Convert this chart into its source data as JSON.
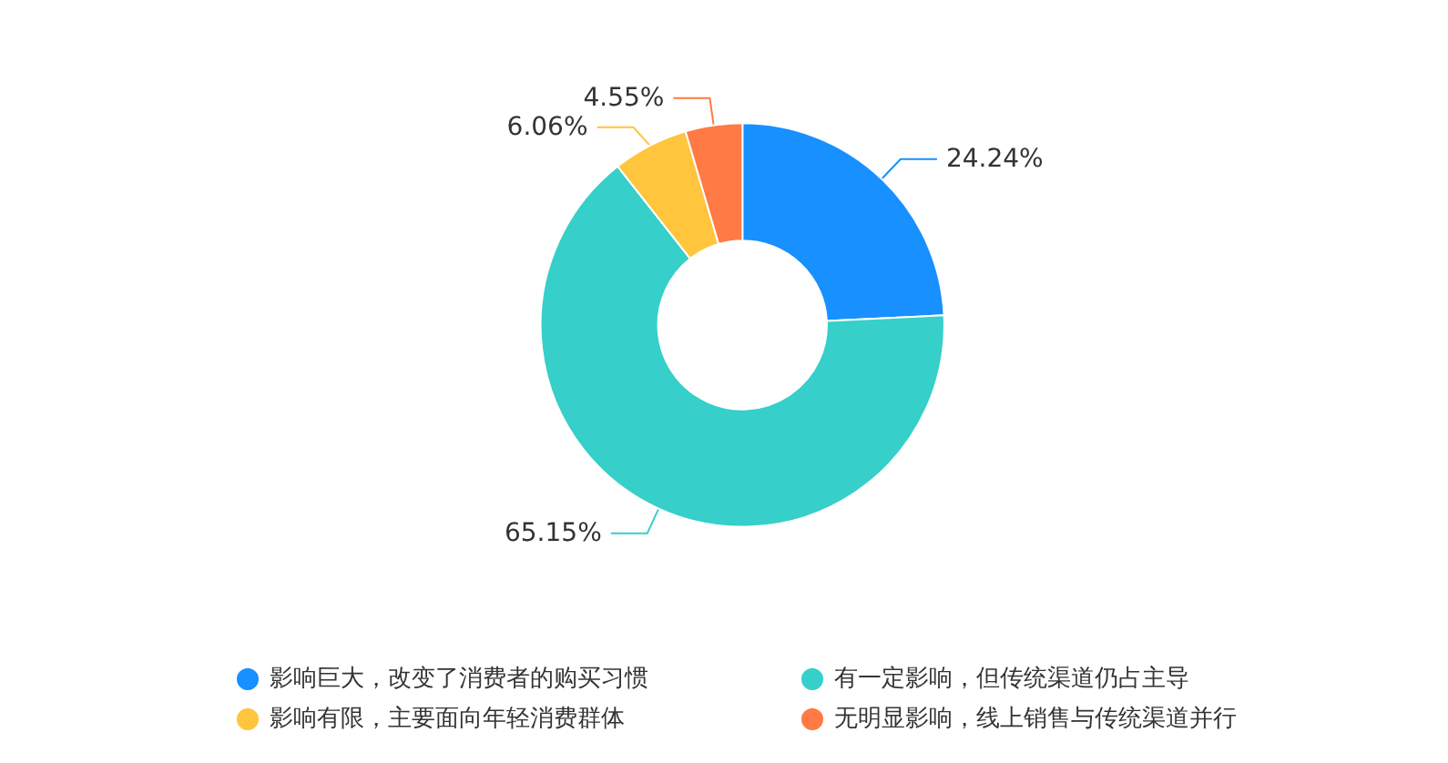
{
  "chart_data": {
    "type": "donut",
    "categories": [
      "影响巨大，改变了消费者的购买习惯",
      "有一定影响，但传统渠道仍占主导",
      "影响有限，主要面向年轻消费群体",
      "无明显影响，线上销售与传统渠道并行"
    ],
    "values": [
      24.24,
      65.15,
      6.06,
      4.55
    ],
    "colors": [
      "#1890ff",
      "#36cfc9",
      "#ffc53d",
      "#ff7a45"
    ],
    "value_labels": [
      "24.24%",
      "65.15%",
      "6.06%",
      "4.55%"
    ],
    "legend": "bottom"
  }
}
